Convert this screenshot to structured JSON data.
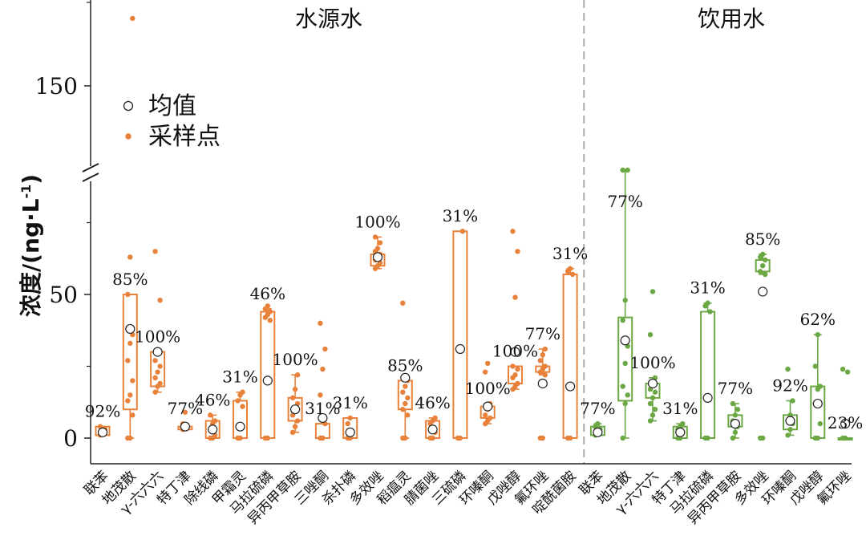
{
  "chart_data": {
    "type": "box",
    "ylabel_main": "浓度/(ng·L",
    "ylabel_sup": "-1",
    "ylabel_tail": ")",
    "y_ticks": [
      0,
      50,
      150
    ],
    "y_axis_break": [
      75,
      120
    ],
    "ylim": [
      -5,
      200
    ],
    "groups": [
      {
        "label": "水源水",
        "color": "#E8823A"
      },
      {
        "label": "饮用水",
        "color": "#6BA844"
      }
    ],
    "legend": [
      {
        "label": "均值",
        "marker": "open-circle"
      },
      {
        "label": "采样点",
        "marker": "dot"
      }
    ],
    "legend_position": "top-left",
    "series": [
      {
        "name": "联苯",
        "group": 0,
        "pct": "92%",
        "box": [
          1,
          4
        ],
        "whisker": [
          1,
          4
        ],
        "mean": 2,
        "points": [
          1,
          2,
          3,
          4
        ]
      },
      {
        "name": "地茂散",
        "group": 0,
        "pct": "85%",
        "box": [
          10,
          50
        ],
        "whisker": [
          0,
          50
        ],
        "mean": 38,
        "points": [
          0,
          0,
          8,
          13,
          15,
          20,
          27,
          33,
          36,
          50,
          63,
          185
        ]
      },
      {
        "name": "γ-六六六",
        "group": 0,
        "pct": "100%",
        "box": [
          18,
          30
        ],
        "whisker": [
          16,
          30
        ],
        "mean": 30,
        "points": [
          16,
          18,
          19,
          21,
          23,
          25,
          27,
          30,
          48,
          65
        ]
      },
      {
        "name": "特丁津",
        "group": 0,
        "pct": "77%",
        "box": [
          3,
          4
        ],
        "whisker": [
          3,
          5
        ],
        "mean": 4,
        "points": [
          3,
          4,
          4,
          5,
          9
        ]
      },
      {
        "name": "除线磷",
        "group": 0,
        "pct": "46%",
        "box": [
          0,
          6
        ],
        "whisker": [
          0,
          8
        ],
        "mean": 3,
        "points": [
          0,
          0,
          1,
          3,
          5,
          6,
          8
        ]
      },
      {
        "name": "甲霜灵",
        "group": 0,
        "pct": "31%",
        "box": [
          0,
          13
        ],
        "whisker": [
          0,
          16
        ],
        "mean": 4,
        "points": [
          0,
          0,
          11,
          13,
          15,
          16
        ]
      },
      {
        "name": "马拉硫磷",
        "group": 0,
        "pct": "46%",
        "box": [
          0,
          44
        ],
        "whisker": [
          0,
          45
        ],
        "mean": 20,
        "points": [
          0,
          0,
          41,
          42,
          43,
          44,
          45,
          46
        ]
      },
      {
        "name": "异丙甲草胺",
        "group": 0,
        "pct": "100%",
        "box": [
          6,
          14
        ],
        "whisker": [
          2,
          22
        ],
        "mean": 10,
        "points": [
          2,
          4,
          6,
          8,
          10,
          12,
          14,
          17,
          22
        ]
      },
      {
        "name": "三唑酮",
        "group": 0,
        "pct": "31%",
        "box": [
          0,
          5
        ],
        "whisker": [
          0,
          5
        ],
        "mean": 7,
        "points": [
          0,
          0,
          5,
          15,
          24,
          31,
          40
        ]
      },
      {
        "name": "杀扑磷",
        "group": 0,
        "pct": "31%",
        "box": [
          0,
          7
        ],
        "whisker": [
          0,
          7
        ],
        "mean": 2,
        "points": [
          0,
          0,
          2,
          5,
          7
        ]
      },
      {
        "name": "多效唑",
        "group": 0,
        "pct": "100%",
        "box": [
          60,
          64
        ],
        "whisker": [
          59,
          70
        ],
        "mean": 63,
        "points": [
          59,
          60,
          61,
          62,
          63,
          64,
          65,
          66,
          68,
          70
        ]
      },
      {
        "name": "稻瘟灵",
        "group": 0,
        "pct": "85%",
        "box": [
          10,
          20
        ],
        "whisker": [
          0,
          20
        ],
        "mean": 21,
        "points": [
          0,
          0,
          8,
          10,
          12,
          14,
          16,
          18,
          20,
          47
        ]
      },
      {
        "name": "腈菌唑",
        "group": 0,
        "pct": "46%",
        "box": [
          0,
          6
        ],
        "whisker": [
          0,
          7
        ],
        "mean": 3,
        "points": [
          0,
          0,
          2,
          5,
          6,
          7
        ]
      },
      {
        "name": "三硫磷",
        "group": 0,
        "pct": "31%",
        "box": [
          0,
          72
        ],
        "whisker": [
          0,
          72
        ],
        "mean": 31,
        "points": [
          0,
          0,
          72
        ]
      },
      {
        "name": "环嗪酮",
        "group": 0,
        "pct": "100%",
        "box": [
          7,
          11
        ],
        "whisker": [
          5,
          12
        ],
        "mean": 11,
        "points": [
          5,
          6,
          7,
          8,
          10,
          12,
          23,
          26
        ]
      },
      {
        "name": "戊唑醇",
        "group": 0,
        "pct": "100%",
        "box": [
          19,
          25
        ],
        "whisker": [
          17,
          25
        ],
        "mean": 30,
        "points": [
          17,
          18,
          19,
          21,
          22,
          24,
          25,
          49,
          65,
          72
        ]
      },
      {
        "name": "氟环唑",
        "group": 0,
        "pct": "77%",
        "box": [
          23,
          25
        ],
        "whisker": [
          22,
          31
        ],
        "mean": 19,
        "points": [
          0,
          0,
          22,
          23,
          24,
          25,
          27,
          29,
          31
        ]
      },
      {
        "name": "啶酰菌胺",
        "group": 0,
        "pct": "31%",
        "box": [
          0,
          57
        ],
        "whisker": [
          0,
          59
        ],
        "mean": 18,
        "points": [
          0,
          0,
          57,
          58,
          59
        ]
      },
      {
        "name": "联苯",
        "group": 1,
        "pct": "77%",
        "box": [
          1,
          4
        ],
        "whisker": [
          1,
          5
        ],
        "mean": 2,
        "points": [
          1,
          2,
          3,
          4,
          5
        ]
      },
      {
        "name": "地茂散",
        "group": 1,
        "pct": "77%",
        "box": [
          13,
          42
        ],
        "whisker": [
          0,
          77
        ],
        "mean": 34,
        "points": [
          0,
          12,
          15,
          18,
          26,
          32,
          41,
          48,
          77,
          110
        ]
      },
      {
        "name": "γ-六六六",
        "group": 1,
        "pct": "100%",
        "box": [
          14,
          19
        ],
        "whisker": [
          6,
          21
        ],
        "mean": 19,
        "points": [
          6,
          8,
          10,
          12,
          14,
          16,
          17,
          19,
          21,
          36,
          51
        ]
      },
      {
        "name": "特丁津",
        "group": 1,
        "pct": "31%",
        "box": [
          0,
          4
        ],
        "whisker": [
          0,
          5
        ],
        "mean": 2,
        "points": [
          0,
          0,
          2,
          3,
          4,
          5
        ]
      },
      {
        "name": "马拉硫磷",
        "group": 1,
        "pct": "31%",
        "box": [
          0,
          44
        ],
        "whisker": [
          0,
          47
        ],
        "mean": 14,
        "points": [
          0,
          0,
          44,
          46,
          47
        ]
      },
      {
        "name": "异丙甲草胺",
        "group": 1,
        "pct": "77%",
        "box": [
          4,
          8
        ],
        "whisker": [
          0,
          12
        ],
        "mean": 5,
        "points": [
          0,
          2,
          4,
          6,
          8,
          10,
          12
        ]
      },
      {
        "name": "多效唑",
        "group": 1,
        "pct": "85%",
        "box": [
          58,
          62
        ],
        "whisker": [
          57,
          64
        ],
        "mean": 51,
        "points": [
          0,
          0,
          57,
          58,
          60,
          62,
          63,
          64
        ]
      },
      {
        "name": "环嗪酮",
        "group": 1,
        "pct": "92%",
        "box": [
          3,
          8
        ],
        "whisker": [
          1,
          13
        ],
        "mean": 6,
        "points": [
          1,
          3,
          5,
          6,
          8,
          13,
          24
        ]
      },
      {
        "name": "戊唑醇",
        "group": 1,
        "pct": "62%",
        "box": [
          0,
          18
        ],
        "whisker": [
          0,
          36
        ],
        "mean": 12,
        "points": [
          0,
          0,
          5,
          12,
          17,
          18,
          25,
          36
        ]
      },
      {
        "name": "氟环唑",
        "group": 1,
        "pct": "23%",
        "box": [
          0,
          0
        ],
        "whisker": [
          0,
          0
        ],
        "mean": 5,
        "points": [
          0,
          0,
          23,
          24
        ]
      }
    ]
  }
}
